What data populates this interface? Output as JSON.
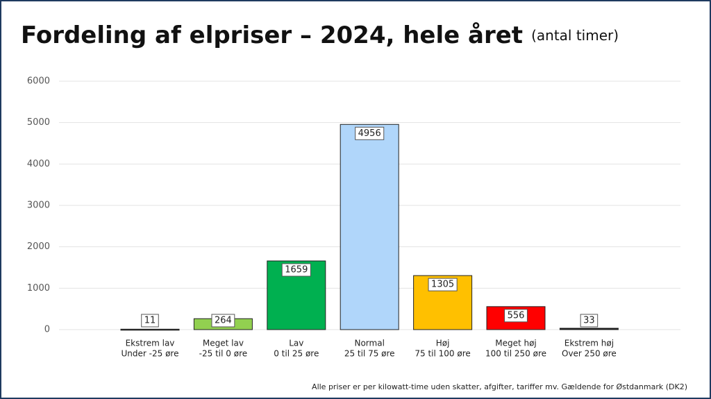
{
  "chart_data": {
    "type": "bar",
    "title": "Fordeling af elpriser – 2024, hele året",
    "subtitle": "(antal timer)",
    "categories": [
      "Ekstrem lav",
      "Meget lav",
      "Lav",
      "Normal",
      "Høj",
      "Meget høj",
      "Ekstrem høj"
    ],
    "category_sublabels": [
      "Under -25 øre",
      "-25 til 0 øre",
      "0 til 25 øre",
      "25 til 75 øre",
      "75 til 100 øre",
      "100 til 250 øre",
      "Over 250 øre"
    ],
    "values": [
      11,
      264,
      1659,
      4956,
      1305,
      556,
      33
    ],
    "colors": [
      "#3a3a3a",
      "#92d050",
      "#00b050",
      "#b0d6fa",
      "#ffc000",
      "#ff0000",
      "#1a1a1a"
    ],
    "ylim": [
      0,
      6000
    ],
    "yticks": [
      0,
      1000,
      2000,
      3000,
      4000,
      5000,
      6000
    ],
    "grid": true,
    "footnote": "Alle priser er per kilowatt-time uden skatter, afgifter, tariffer mv. Gældende for Østdanmark (DK2)"
  }
}
